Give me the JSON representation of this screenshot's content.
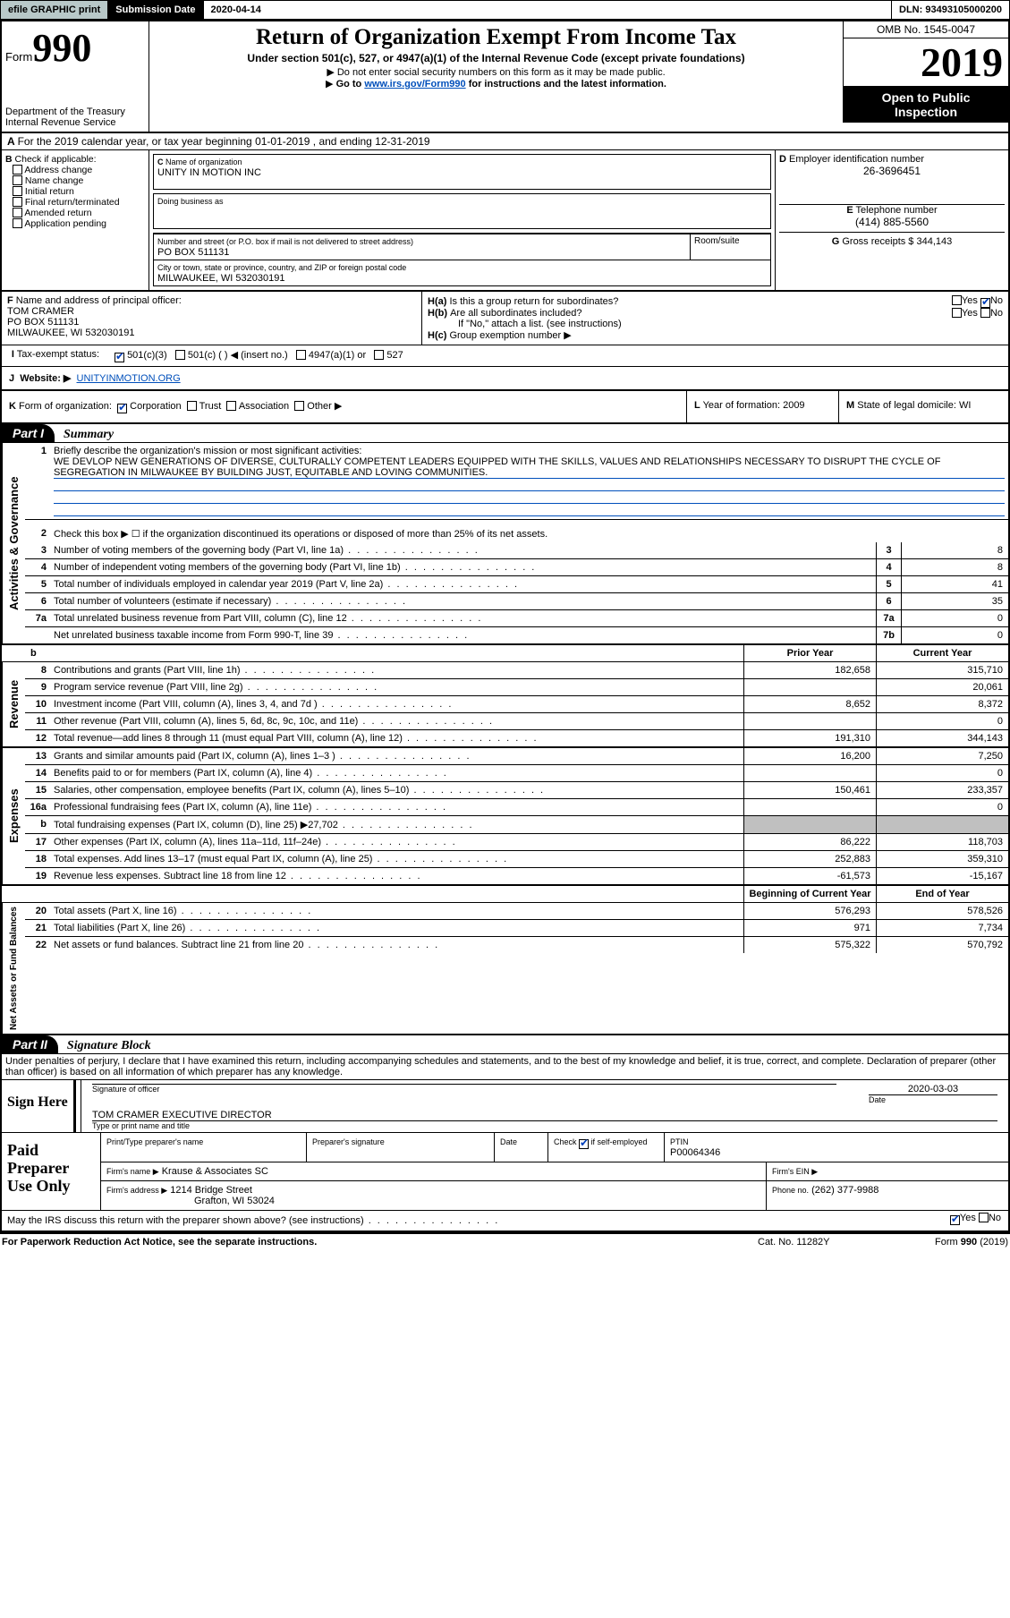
{
  "topbar": {
    "efile": "efile GRAPHIC print",
    "sublabel": "Submission Date",
    "subdate": "2020-04-14",
    "dln": "DLN: 93493105000200"
  },
  "header": {
    "form_prefix": "Form",
    "form_num": "990",
    "dept": "Department of the Treasury\nInternal Revenue Service",
    "title": "Return of Organization Exempt From Income Tax",
    "sub1": "Under section 501(c), 527, or 4947(a)(1) of the Internal Revenue Code (except private foundations)",
    "sub2": "Do not enter social security numbers on this form as it may be made public.",
    "sub3_pre": "Go to ",
    "sub3_link": "www.irs.gov/Form990",
    "sub3_post": " for instructions and the latest information.",
    "omb": "OMB No. 1545-0047",
    "year": "2019",
    "open1": "Open to Public",
    "open2": "Inspection"
  },
  "A": "For the 2019 calendar year, or tax year beginning 01-01-2019   , and ending 12-31-2019",
  "B": {
    "label": "Check if applicable:",
    "opts": [
      "Address change",
      "Name change",
      "Initial return",
      "Final return/terminated",
      "Amended return",
      "Application pending"
    ]
  },
  "C": {
    "name_lab": "Name of organization",
    "name": "UNITY IN MOTION INC",
    "dba_lab": "Doing business as",
    "mail_lab": "Number and street (or P.O. box if mail is not delivered to street address)",
    "room_lab": "Room/suite",
    "mail": "PO BOX 511131",
    "city_lab": "City or town, state or province, country, and ZIP or foreign postal code",
    "city": "MILWAUKEE, WI  532030191"
  },
  "D": {
    "lab": "Employer identification number",
    "val": "26-3696451"
  },
  "E": {
    "lab": "Telephone number",
    "val": "(414) 885-5560"
  },
  "G": {
    "lab": "Gross receipts $",
    "val": "344,143"
  },
  "F": {
    "lab": "Name and address of principal officer:",
    "name": "TOM CRAMER",
    "addr1": "PO BOX 511131",
    "addr2": "MILWAUKEE, WI  532030191"
  },
  "H": {
    "a_lab": "Is this a group return for subordinates?",
    "a_yn": "No",
    "b_lab": "Are all subordinates included?",
    "b_note": "If \"No,\" attach a list. (see instructions)",
    "c_lab": "Group exemption number ▶"
  },
  "tax": {
    "lab": "Tax-exempt status:",
    "o1": "501(c)(3)",
    "o2": "501(c) (  ) ◀ (insert no.)",
    "o3": "4947(a)(1) or",
    "o4": "527"
  },
  "J": {
    "lab": "Website: ▶",
    "val": "UNITYINMOTION.ORG"
  },
  "K": {
    "lab": "Form of organization:",
    "o1": "Corporation",
    "o2": "Trust",
    "o3": "Association",
    "o4": "Other ▶"
  },
  "L": {
    "lab": "Year of formation:",
    "val": "2009"
  },
  "M": {
    "lab": "State of legal domicile:",
    "val": "WI"
  },
  "partI": {
    "part": "Part I",
    "label": "Summary"
  },
  "sections": {
    "activities": {
      "sidelabel": "Activities & Governance",
      "q1_lab": "Briefly describe the organization's mission or most significant activities:",
      "q1_text": "WE DEVLOP NEW GENERATIONS OF DIVERSE, CULTURALLY COMPETENT LEADERS EQUIPPED WITH THE SKILLS, VALUES AND RELATIONSHIPS NECESSARY TO DISRUPT THE CYCLE OF SEGREGATION IN MILWAUKEE BY BUILDING JUST, EQUITABLE AND LOVING COMMUNITIES.",
      "q2": "Check this box ▶ ☐  if the organization discontinued its operations or disposed of more than 25% of its net assets.",
      "rows": [
        {
          "n": "3",
          "t": "Number of voting members of the governing body (Part VI, line 1a)",
          "ref": "3",
          "val": "8"
        },
        {
          "n": "4",
          "t": "Number of independent voting members of the governing body (Part VI, line 1b)",
          "ref": "4",
          "val": "8"
        },
        {
          "n": "5",
          "t": "Total number of individuals employed in calendar year 2019 (Part V, line 2a)",
          "ref": "5",
          "val": "41"
        },
        {
          "n": "6",
          "t": "Total number of volunteers (estimate if necessary)",
          "ref": "6",
          "val": "35"
        },
        {
          "n": "7a",
          "t": "Total unrelated business revenue from Part VIII, column (C), line 12",
          "ref": "7a",
          "val": "0"
        },
        {
          "n": "",
          "t": "Net unrelated business taxable income from Form 990-T, line 39",
          "ref": "7b",
          "val": "0"
        }
      ]
    },
    "cols": {
      "prior": "Prior Year",
      "current": "Current Year"
    },
    "revenue": {
      "sidelabel": "Revenue",
      "rows": [
        {
          "n": "8",
          "t": "Contributions and grants (Part VIII, line 1h)",
          "p": "182,658",
          "c": "315,710"
        },
        {
          "n": "9",
          "t": "Program service revenue (Part VIII, line 2g)",
          "p": "",
          "c": "20,061"
        },
        {
          "n": "10",
          "t": "Investment income (Part VIII, column (A), lines 3, 4, and 7d )",
          "p": "8,652",
          "c": "8,372"
        },
        {
          "n": "11",
          "t": "Other revenue (Part VIII, column (A), lines 5, 6d, 8c, 9c, 10c, and 11e)",
          "p": "",
          "c": "0"
        },
        {
          "n": "12",
          "t": "Total revenue—add lines 8 through 11 (must equal Part VIII, column (A), line 12)",
          "p": "191,310",
          "c": "344,143"
        }
      ]
    },
    "expenses": {
      "sidelabel": "Expenses",
      "rows": [
        {
          "n": "13",
          "t": "Grants and similar amounts paid (Part IX, column (A), lines 1–3 )",
          "p": "16,200",
          "c": "7,250"
        },
        {
          "n": "14",
          "t": "Benefits paid to or for members (Part IX, column (A), line 4)",
          "p": "",
          "c": "0"
        },
        {
          "n": "15",
          "t": "Salaries, other compensation, employee benefits (Part IX, column (A), lines 5–10)",
          "p": "150,461",
          "c": "233,357"
        },
        {
          "n": "16a",
          "t": "Professional fundraising fees (Part IX, column (A), line 11e)",
          "p": "",
          "c": "0"
        },
        {
          "n": "b",
          "t": "Total fundraising expenses (Part IX, column (D), line 25) ▶27,702",
          "p": "gray",
          "c": "gray"
        },
        {
          "n": "17",
          "t": "Other expenses (Part IX, column (A), lines 11a–11d, 11f–24e)",
          "p": "86,222",
          "c": "118,703"
        },
        {
          "n": "18",
          "t": "Total expenses. Add lines 13–17 (must equal Part IX, column (A), line 25)",
          "p": "252,883",
          "c": "359,310"
        },
        {
          "n": "19",
          "t": "Revenue less expenses. Subtract line 18 from line 12",
          "p": "-61,573",
          "c": "-15,167"
        }
      ]
    },
    "cols2": {
      "beg": "Beginning of Current Year",
      "end": "End of Year"
    },
    "netassets": {
      "sidelabel": "Net Assets or Fund Balances",
      "rows": [
        {
          "n": "20",
          "t": "Total assets (Part X, line 16)",
          "p": "576,293",
          "c": "578,526"
        },
        {
          "n": "21",
          "t": "Total liabilities (Part X, line 26)",
          "p": "971",
          "c": "7,734"
        },
        {
          "n": "22",
          "t": "Net assets or fund balances. Subtract line 21 from line 20",
          "p": "575,322",
          "c": "570,792"
        }
      ]
    }
  },
  "partII": {
    "part": "Part II",
    "label": "Signature Block",
    "decl": "Under penalties of perjury, I declare that I have examined this return, including accompanying schedules and statements, and to the best of my knowledge and belief, it is true, correct, and complete. Declaration of preparer (other than officer) is based on all information of which preparer has any knowledge."
  },
  "sign": {
    "here": "Sign Here",
    "sig_lab": "Signature of officer",
    "date_lab": "Date",
    "date": "2020-03-03",
    "name": "TOM CRAMER  EXECUTIVE DIRECTOR",
    "name_lab": "Type or print name and title"
  },
  "prep": {
    "lab": "Paid Preparer Use Only",
    "h1": "Print/Type preparer's name",
    "h2": "Preparer's signature",
    "h3": "Date",
    "h4_pre": "Check ",
    "h4_post": " if self-employed",
    "h5": "PTIN",
    "ptin": "P00064346",
    "firm_lab": "Firm's name  ▶",
    "firm": "Krause & Associates SC",
    "ein_lab": "Firm's EIN ▶",
    "addr_lab": "Firm's address ▶",
    "addr1": "1214 Bridge Street",
    "addr2": "Grafton, WI  53024",
    "phone_lab": "Phone no.",
    "phone": "(262) 377-9988"
  },
  "discuss": "May the IRS discuss this return with the preparer shown above? (see instructions)",
  "footer": {
    "l": "For Paperwork Reduction Act Notice, see the separate instructions.",
    "m": "Cat. No. 11282Y",
    "r": "Form 990 (2019)"
  }
}
